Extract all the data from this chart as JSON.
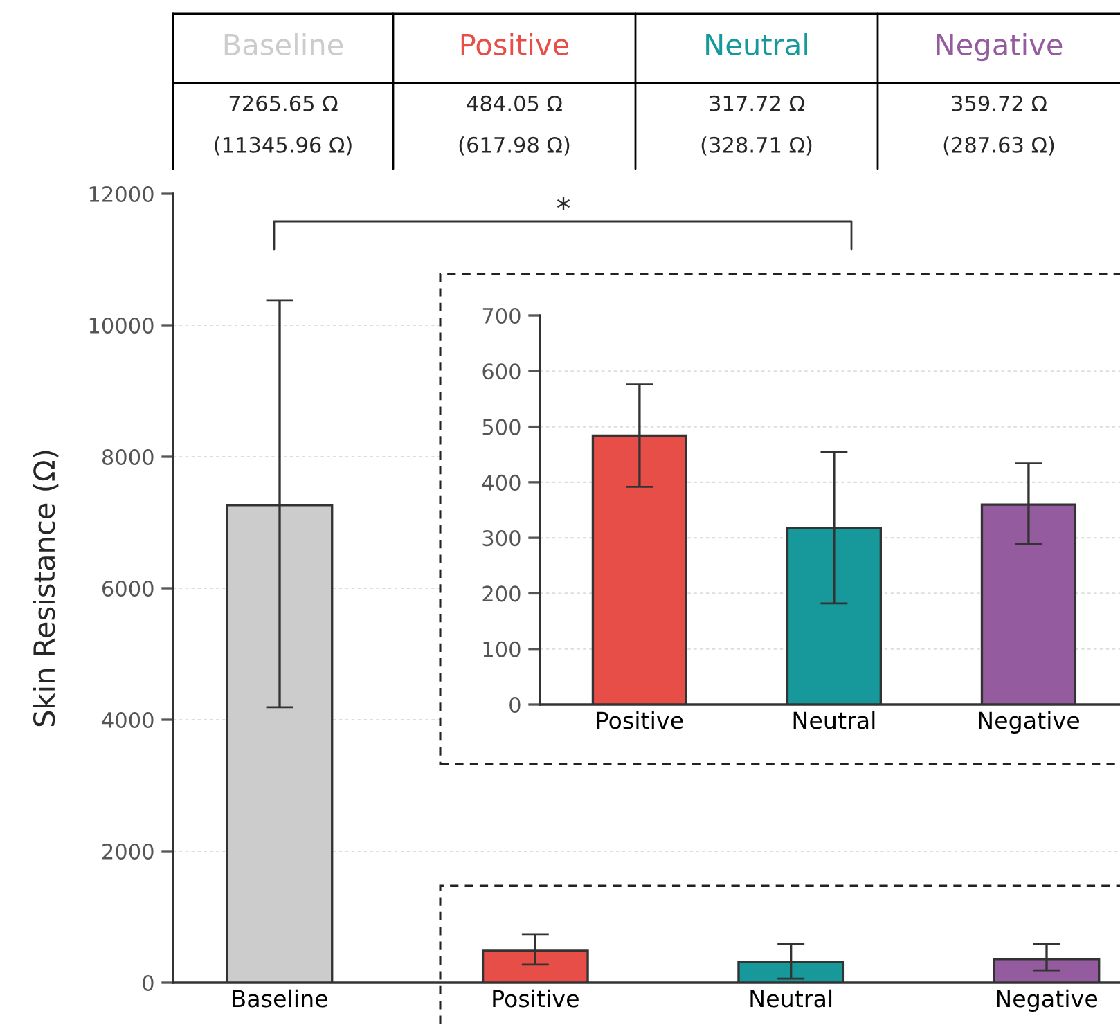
{
  "chart_data": [
    {
      "type": "bar",
      "ylabel": "Skin Resistance (Ω)",
      "categories": [
        "Baseline",
        "Positive",
        "Neutral",
        "Negative"
      ],
      "values": [
        7265.65,
        484.05,
        317.72,
        359.72
      ],
      "colors": [
        "#cccccc",
        "#e84e48",
        "#17999b",
        "#945c9f"
      ],
      "errors": [
        [
          4190,
          10380
        ],
        [
          274,
          737
        ],
        [
          63,
          589
        ],
        [
          189,
          589
        ]
      ],
      "value_labels": [
        "7265.65 Ω",
        "484.05 Ω",
        "317.72 Ω",
        "359.72 Ω"
      ],
      "annotations": [
        "(11345.96 Ω)",
        "(617.98 Ω)",
        "(328.71 Ω)",
        "(287.63 Ω)",
        "*"
      ],
      "ylim": [
        0,
        12000
      ],
      "yticks": [
        0,
        2000,
        4000,
        6000,
        8000,
        10000,
        12000
      ],
      "grid": "y"
    },
    {
      "type": "bar",
      "categories": [
        "Positive",
        "Neutral",
        "Negative"
      ],
      "values": [
        484.05,
        317.72,
        359.72
      ],
      "colors": [
        "#e84e48",
        "#17999b",
        "#945c9f"
      ],
      "errors": [
        [
          392,
          576
        ],
        [
          182,
          455
        ],
        [
          289,
          434
        ]
      ],
      "ylim": [
        0,
        700
      ],
      "yticks": [
        0,
        100,
        200,
        300,
        400,
        500,
        600,
        700
      ],
      "grid": "y"
    }
  ]
}
